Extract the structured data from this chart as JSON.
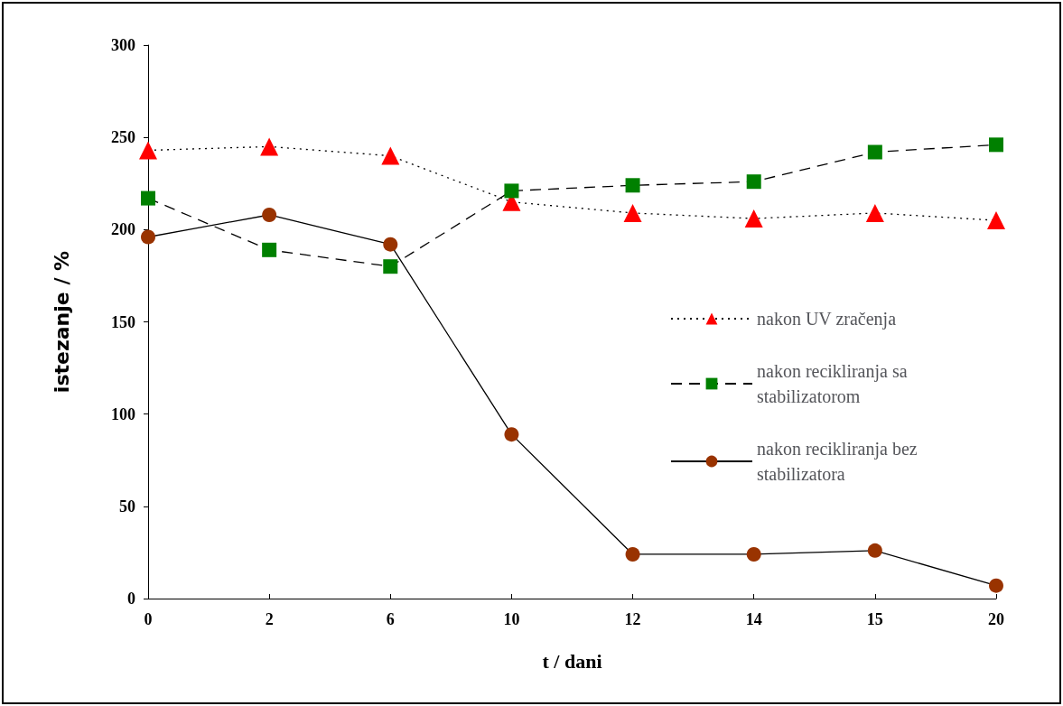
{
  "chart_data": {
    "type": "line",
    "xlabel": "t / dani",
    "ylabel": "istezanje / %",
    "categories": [
      "0",
      "2",
      "6",
      "10",
      "12",
      "14",
      "15",
      "20"
    ],
    "ylim": [
      0,
      300
    ],
    "yticks": [
      0,
      50,
      100,
      150,
      200,
      250,
      300
    ],
    "grid": false,
    "legend": "right",
    "series": [
      {
        "name": "nakon UV zračenja",
        "color": "#ff0000",
        "marker": "triangle",
        "line_style": "dotted",
        "values": [
          243,
          245,
          240,
          215,
          209,
          206,
          209,
          205
        ]
      },
      {
        "name": "nakon recikliranja sa stabilizatorom",
        "color": "#008000",
        "marker": "square",
        "line_style": "dashed",
        "values": [
          217,
          189,
          180,
          221,
          224,
          226,
          242,
          246
        ]
      },
      {
        "name": "nakon recikliranja bez stabilizatora",
        "color": "#993300",
        "marker": "circle",
        "line_style": "solid",
        "values": [
          196,
          208,
          192,
          89,
          24,
          24,
          26,
          7
        ]
      }
    ]
  }
}
